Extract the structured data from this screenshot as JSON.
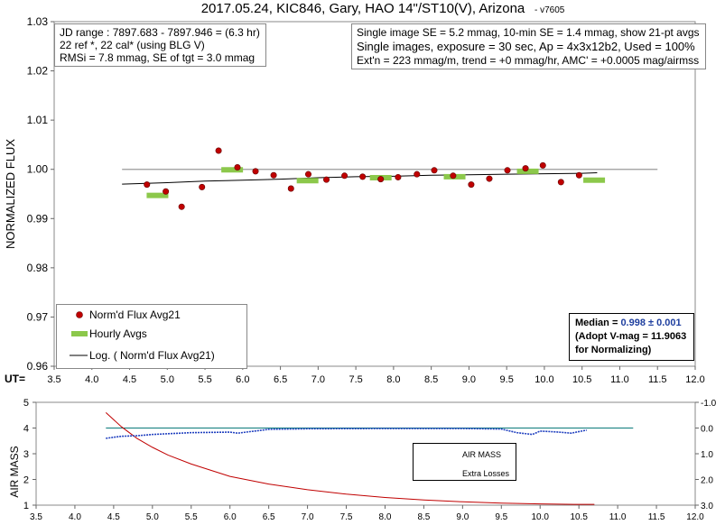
{
  "chart_data": [
    {
      "type": "scatter",
      "title": "2017.05.24, KIC846, Gary, HAO 14\"/ST10(V), Arizona",
      "title_suffix": "- v7605",
      "ylabel": "NORMALIZED FLUX",
      "xlabel": "UT=",
      "xlim": [
        3.5,
        12.0
      ],
      "ylim": [
        0.96,
        1.03
      ],
      "x_ticks": [
        "3.5",
        "4.0",
        "4.5",
        "5.0",
        "5.5",
        "6.0",
        "6.5",
        "7.0",
        "7.5",
        "8.0",
        "8.5",
        "9.0",
        "9.5",
        "10.0",
        "10.5",
        "11.0",
        "11.5",
        "12.0"
      ],
      "y_ticks": [
        "0.96",
        "0.97",
        "0.98",
        "0.99",
        "1.00",
        "1.01",
        "1.02",
        "1.03"
      ],
      "reference_line": 1.0,
      "grid": false,
      "info_left": [
        "JD range : 7897.683 - 7897.946 = (6.3 hr)",
        "22 ref *, 22 cal* (using BLG V)",
        "RMSi = 7.8 mmag, SE of tgt = 3.0 mmag"
      ],
      "info_right": [
        "Single image SE = 5.2 mmag, 10-min SE = 1.4 mmag, show 21-pt avgs",
        "Single images, exposure = 30 sec, Ap = 4x3x12b2, Used = 100%",
        "Ext'n = 223 mmag/m, trend = +0 mmag/hr, AMC' = +0.0005 mag/airmss"
      ],
      "median_box": {
        "median_label": "Median = ",
        "median_value": "0.998 ± 0.001",
        "line2": "(Adopt V-mag = 11.9063",
        "line3": " for Normalizing)"
      },
      "legend": [
        "Norm'd Flux Avg21",
        "Hourly Avgs",
        "Log. ( Norm'd Flux Avg21)"
      ],
      "series": [
        {
          "name": "Norm'd Flux Avg21",
          "color": "#c00000",
          "x": [
            4.73,
            4.98,
            5.19,
            5.46,
            5.68,
            5.93,
            6.17,
            6.41,
            6.64,
            6.87,
            7.11,
            7.35,
            7.59,
            7.83,
            8.06,
            8.31,
            8.54,
            8.79,
            9.03,
            9.27,
            9.51,
            9.75,
            9.98,
            10.22,
            10.46
          ],
          "y": [
            0.9969,
            0.9955,
            0.9924,
            0.9964,
            1.0038,
            1.0004,
            0.9996,
            0.9988,
            0.9961,
            0.999,
            0.9979,
            0.9987,
            0.9985,
            0.998,
            0.9984,
            0.999,
            0.9998,
            0.9987,
            0.9969,
            0.9981,
            0.9998,
            1.0002,
            1.0008,
            0.9974,
            0.9988
          ]
        },
        {
          "name": "Hourly Avgs",
          "color": "#8cc84b",
          "x": [
            4.87,
            5.86,
            6.86,
            7.83,
            8.81,
            9.78,
            10.66
          ],
          "y": [
            0.9947,
            0.9999,
            0.9977,
            0.9983,
            0.9985,
            0.9996,
            0.9978
          ]
        },
        {
          "name": "Log. ( Norm'd Flux Avg21)",
          "color": "#000000",
          "x": [
            4.4,
            5.0,
            5.5,
            6.0,
            6.5,
            7.0,
            7.5,
            8.0,
            8.5,
            9.0,
            9.5,
            10.0,
            10.5,
            10.7
          ],
          "y": [
            0.997,
            0.9973,
            0.9976,
            0.9978,
            0.998,
            0.9983,
            0.9985,
            0.9986,
            0.9988,
            0.9989,
            0.999,
            0.9991,
            0.9992,
            0.9993
          ]
        }
      ]
    },
    {
      "type": "line",
      "ylabel": "AIR MASS",
      "xlim": [
        3.5,
        12.0
      ],
      "ylim": [
        1,
        5
      ],
      "y2lim": [
        -1.0,
        3.0
      ],
      "x_ticks": [
        "3.5",
        "4.0",
        "4.5",
        "5.0",
        "5.5",
        "6.0",
        "6.5",
        "7.0",
        "7.5",
        "8.0",
        "8.5",
        "9.0",
        "9.5",
        "10.0",
        "10.5",
        "11.0",
        "11.5",
        "12.0"
      ],
      "y_ticks": [
        "1",
        "2",
        "3",
        "4",
        "5"
      ],
      "y2_ticks": [
        "-1.0",
        "0.0",
        "1.0",
        "2.0",
        "3.0"
      ],
      "legend": [
        "AIR MASS",
        "Extra Losses"
      ],
      "series": [
        {
          "name": "AIR MASS",
          "color": "#c00000",
          "x": [
            4.4,
            4.6,
            4.8,
            5.0,
            5.2,
            5.5,
            6.0,
            6.5,
            7.0,
            7.5,
            8.0,
            8.5,
            9.0,
            9.5,
            10.0,
            10.5,
            10.7
          ],
          "y": [
            4.6,
            4.05,
            3.6,
            3.25,
            2.95,
            2.6,
            2.12,
            1.82,
            1.6,
            1.43,
            1.3,
            1.2,
            1.13,
            1.08,
            1.05,
            1.03,
            1.03
          ]
        },
        {
          "name": "Extra Losses",
          "color": "#1f3fbf",
          "x": [
            4.4,
            4.6,
            4.8,
            5.0,
            5.5,
            6.0,
            6.1,
            6.5,
            7.0,
            8.0,
            9.0,
            9.5,
            9.7,
            9.9,
            10.0,
            10.2,
            10.4,
            10.6
          ],
          "y": [
            0.4,
            0.32,
            0.3,
            0.25,
            0.18,
            0.16,
            0.2,
            0.05,
            0.03,
            0.02,
            0.02,
            0.04,
            0.18,
            0.25,
            0.12,
            0.15,
            0.2,
            0.08
          ]
        },
        {
          "name": "reference",
          "color": "#0a7a7a",
          "x": [
            4.4,
            11.2
          ],
          "y": [
            0.0,
            0.0
          ]
        }
      ]
    }
  ]
}
